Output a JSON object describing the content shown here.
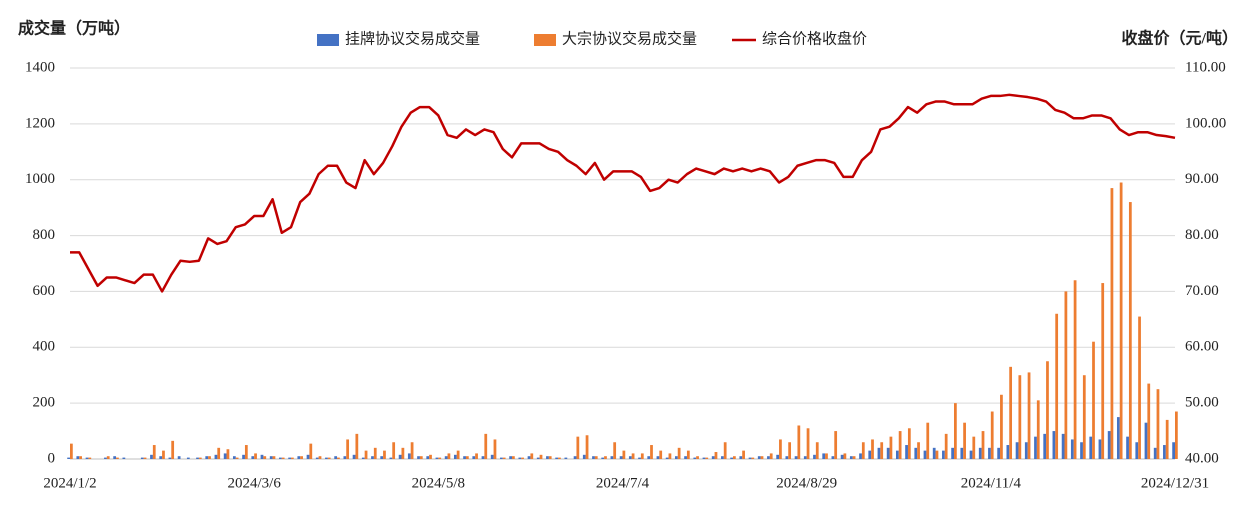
{
  "chart_data": {
    "type": "bar",
    "y_label": "成交量（万吨）",
    "y2_label": "收盘价（元/吨）",
    "categories": [
      "2024/1/2",
      null,
      null,
      null,
      null,
      null,
      null,
      null,
      null,
      null,
      null,
      null,
      null,
      null,
      null,
      null,
      null,
      null,
      null,
      null,
      "2024/3/6",
      null,
      null,
      null,
      null,
      null,
      null,
      null,
      null,
      null,
      null,
      null,
      null,
      null,
      null,
      null,
      null,
      null,
      null,
      null,
      "2024/5/8",
      null,
      null,
      null,
      null,
      null,
      null,
      null,
      null,
      null,
      null,
      null,
      null,
      null,
      null,
      null,
      null,
      null,
      null,
      null,
      "2024/7/4",
      null,
      null,
      null,
      null,
      null,
      null,
      null,
      null,
      null,
      null,
      null,
      null,
      null,
      null,
      null,
      null,
      null,
      null,
      null,
      "2024/8/29",
      null,
      null,
      null,
      null,
      null,
      null,
      null,
      null,
      null,
      null,
      null,
      null,
      null,
      null,
      null,
      null,
      null,
      null,
      null,
      "2024/11/4",
      null,
      null,
      null,
      null,
      null,
      null,
      null,
      null,
      null,
      null,
      null,
      null,
      null,
      null,
      null,
      null,
      null,
      null,
      null,
      "2024/12/31"
    ],
    "series": [
      {
        "name": "挂牌协议交易成交量",
        "color": "#4472c4",
        "type": "bar",
        "values": [
          5,
          10,
          5,
          0,
          5,
          10,
          5,
          0,
          5,
          15,
          10,
          5,
          10,
          5,
          5,
          10,
          15,
          20,
          10,
          15,
          10,
          15,
          10,
          5,
          5,
          10,
          15,
          5,
          5,
          10,
          10,
          15,
          5,
          10,
          10,
          5,
          15,
          20,
          10,
          10,
          5,
          10,
          15,
          10,
          10,
          10,
          15,
          5,
          10,
          5,
          10,
          5,
          10,
          5,
          5,
          10,
          15,
          10,
          5,
          10,
          10,
          10,
          5,
          10,
          10,
          5,
          10,
          10,
          5,
          5,
          10,
          10,
          5,
          10,
          5,
          10,
          10,
          15,
          10,
          10,
          10,
          15,
          20,
          10,
          15,
          10,
          20,
          30,
          40,
          40,
          30,
          50,
          40,
          30,
          40,
          30,
          40,
          40,
          30,
          40,
          40,
          40,
          50,
          60,
          60,
          80,
          90,
          100,
          90,
          70,
          60,
          80,
          70,
          100,
          150,
          80,
          60,
          130,
          40,
          50,
          60
        ]
      },
      {
        "name": "大宗协议交易成交量",
        "color": "#ed7d31",
        "type": "bar",
        "values": [
          55,
          10,
          5,
          0,
          10,
          5,
          0,
          0,
          5,
          50,
          30,
          65,
          0,
          0,
          5,
          10,
          40,
          35,
          5,
          50,
          20,
          10,
          10,
          5,
          5,
          10,
          55,
          10,
          5,
          5,
          70,
          90,
          30,
          40,
          30,
          60,
          40,
          60,
          10,
          15,
          5,
          20,
          30,
          10,
          20,
          90,
          70,
          5,
          10,
          5,
          20,
          15,
          10,
          5,
          0,
          80,
          85,
          10,
          10,
          60,
          30,
          20,
          20,
          50,
          30,
          20,
          40,
          30,
          10,
          5,
          25,
          60,
          10,
          30,
          5,
          10,
          20,
          70,
          60,
          120,
          110,
          60,
          20,
          100,
          20,
          10,
          60,
          70,
          60,
          80,
          100,
          110,
          60,
          130,
          30,
          90,
          200,
          130,
          80,
          100,
          170,
          230,
          330,
          300,
          310,
          210,
          350,
          520,
          600,
          640,
          300,
          420,
          630,
          970,
          990,
          920,
          510,
          270,
          250,
          140,
          170
        ]
      },
      {
        "name": "综合价格收盘价",
        "color": "#c00000",
        "type": "line",
        "axis": "y2",
        "values": [
          77,
          77,
          74,
          71,
          72.5,
          72.5,
          72,
          71.5,
          73,
          73,
          70,
          73,
          75.5,
          75.3,
          75.5,
          79.5,
          78.5,
          79,
          81.5,
          82,
          83.5,
          83.5,
          86.5,
          80.5,
          81.5,
          86,
          87.5,
          91,
          92.5,
          92.5,
          89.5,
          88.5,
          93.5,
          91,
          93,
          96,
          99.5,
          102,
          103,
          103,
          101.5,
          98,
          97.5,
          99,
          98,
          99,
          98.5,
          95.5,
          94,
          96.5,
          96.5,
          96.5,
          95.5,
          95,
          93.5,
          92.5,
          91,
          93,
          90,
          91.5,
          91.5,
          91.5,
          90.5,
          88,
          88.5,
          90,
          89.5,
          91,
          92,
          91.5,
          91,
          92,
          91.5,
          92,
          91.5,
          92,
          91.5,
          89.5,
          90.5,
          92.5,
          93,
          93.5,
          93.5,
          93,
          90.5,
          90.5,
          93.5,
          95,
          99,
          99.5,
          101,
          103,
          102,
          103.5,
          104,
          104,
          103.5,
          103.5,
          103.5,
          104.5,
          105,
          105,
          105.2,
          105,
          104.8,
          104.5,
          104,
          102.5,
          102,
          101,
          101,
          101.5,
          101.5,
          101,
          99,
          98,
          98.5,
          98.5,
          98,
          97.8,
          97.5
        ]
      }
    ],
    "ylim": [
      0,
      1400
    ],
    "yticks": [
      0,
      200,
      400,
      600,
      800,
      1000,
      1200,
      1400
    ],
    "y2lim": [
      40,
      110
    ],
    "y2ticks": [
      {
        "value": 40,
        "label": "40.00"
      },
      {
        "value": 50,
        "label": "50.00"
      },
      {
        "value": 60,
        "label": "60.00"
      },
      {
        "value": 70,
        "label": "70.00"
      },
      {
        "value": 80,
        "label": "80.00"
      },
      {
        "value": 90,
        "label": "90.00"
      },
      {
        "value": 100,
        "label": "100.00"
      },
      {
        "value": 110,
        "label": "110.00"
      }
    ],
    "grid": true,
    "legend": "top"
  }
}
